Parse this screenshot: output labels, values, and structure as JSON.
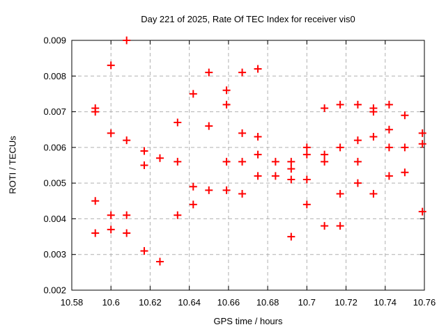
{
  "figure": {
    "background_color": "#ffffff",
    "border_color": "#000000",
    "grid_color": "#b0b0b0"
  },
  "chart_data": {
    "type": "scatter",
    "title": "Day 221 of 2025, Rate Of TEC Index for receiver vis0",
    "xlabel": "GPS time / hours",
    "ylabel": "ROTI / TECUs",
    "xlim": [
      10.58,
      10.76
    ],
    "ylim": [
      0.002,
      0.009
    ],
    "x_ticks": [
      "10.58",
      "10.6",
      "10.62",
      "10.64",
      "10.66",
      "10.68",
      "10.7",
      "10.72",
      "10.74",
      "10.76"
    ],
    "y_ticks": [
      "0.002",
      "0.003",
      "0.004",
      "0.005",
      "0.006",
      "0.007",
      "0.008",
      "0.009"
    ],
    "grid": true,
    "legend_position": "none",
    "marker": {
      "shape": "plus",
      "color": "#ff0000",
      "size": 11
    },
    "points": [
      [
        10.592,
        0.0071
      ],
      [
        10.592,
        0.007
      ],
      [
        10.592,
        0.0045
      ],
      [
        10.592,
        0.0036
      ],
      [
        10.6,
        0.0083
      ],
      [
        10.6,
        0.0064
      ],
      [
        10.6,
        0.0041
      ],
      [
        10.6,
        0.0037
      ],
      [
        10.608,
        0.009
      ],
      [
        10.608,
        0.0062
      ],
      [
        10.608,
        0.0041
      ],
      [
        10.608,
        0.0036
      ],
      [
        10.617,
        0.0059
      ],
      [
        10.617,
        0.0055
      ],
      [
        10.617,
        0.0031
      ],
      [
        10.625,
        0.0057
      ],
      [
        10.625,
        0.0028
      ],
      [
        10.634,
        0.0067
      ],
      [
        10.634,
        0.0056
      ],
      [
        10.634,
        0.0041
      ],
      [
        10.642,
        0.0075
      ],
      [
        10.642,
        0.0049
      ],
      [
        10.642,
        0.0044
      ],
      [
        10.65,
        0.0081
      ],
      [
        10.65,
        0.0066
      ],
      [
        10.65,
        0.0048
      ],
      [
        10.659,
        0.0076
      ],
      [
        10.659,
        0.0072
      ],
      [
        10.659,
        0.0056
      ],
      [
        10.659,
        0.0048
      ],
      [
        10.667,
        0.0081
      ],
      [
        10.667,
        0.0064
      ],
      [
        10.667,
        0.0056
      ],
      [
        10.667,
        0.0047
      ],
      [
        10.675,
        0.0082
      ],
      [
        10.675,
        0.0063
      ],
      [
        10.675,
        0.0058
      ],
      [
        10.675,
        0.0052
      ],
      [
        10.684,
        0.0056
      ],
      [
        10.684,
        0.0052
      ],
      [
        10.692,
        0.0056
      ],
      [
        10.692,
        0.0054
      ],
      [
        10.692,
        0.0051
      ],
      [
        10.692,
        0.0035
      ],
      [
        10.7,
        0.006
      ],
      [
        10.7,
        0.0058
      ],
      [
        10.7,
        0.0051
      ],
      [
        10.7,
        0.0044
      ],
      [
        10.709,
        0.0071
      ],
      [
        10.709,
        0.0058
      ],
      [
        10.709,
        0.0056
      ],
      [
        10.709,
        0.0038
      ],
      [
        10.717,
        0.0072
      ],
      [
        10.717,
        0.006
      ],
      [
        10.717,
        0.0047
      ],
      [
        10.717,
        0.0038
      ],
      [
        10.726,
        0.0072
      ],
      [
        10.726,
        0.0062
      ],
      [
        10.726,
        0.0056
      ],
      [
        10.726,
        0.005
      ],
      [
        10.734,
        0.0071
      ],
      [
        10.734,
        0.007
      ],
      [
        10.734,
        0.0063
      ],
      [
        10.734,
        0.0047
      ],
      [
        10.742,
        0.0072
      ],
      [
        10.742,
        0.0065
      ],
      [
        10.742,
        0.006
      ],
      [
        10.742,
        0.0052
      ],
      [
        10.75,
        0.0069
      ],
      [
        10.75,
        0.006
      ],
      [
        10.75,
        0.0053
      ],
      [
        10.759,
        0.0064
      ],
      [
        10.759,
        0.0061
      ],
      [
        10.759,
        0.0042
      ]
    ]
  }
}
